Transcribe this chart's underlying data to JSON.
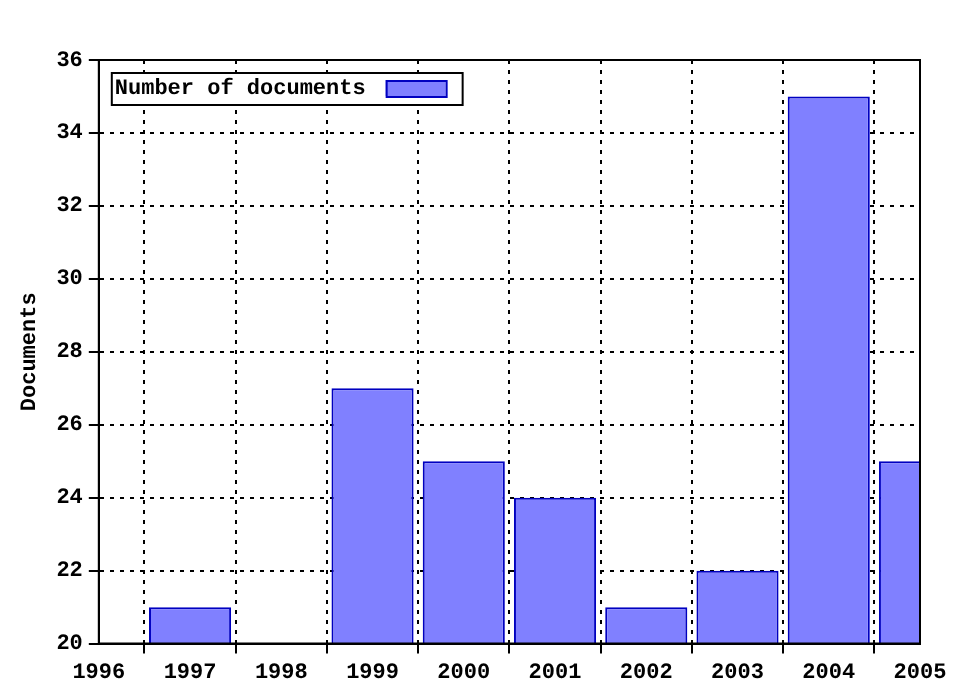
{
  "chart_data": {
    "type": "bar",
    "ylabel": "Documents",
    "x": [
      1997,
      1998,
      1999,
      2000,
      2001,
      2002,
      2003,
      2004,
      2005
    ],
    "series": [
      {
        "name": "Number of documents",
        "color": "#8080ff",
        "values": [
          21,
          null,
          27,
          25,
          24,
          21,
          22,
          35,
          25
        ]
      }
    ],
    "xlim": [
      1996,
      2005
    ],
    "xticks": [
      1996,
      1997,
      1998,
      1999,
      2000,
      2001,
      2002,
      2003,
      2004,
      2005
    ],
    "ylim": [
      20,
      36
    ],
    "yticks": [
      20,
      22,
      24,
      26,
      28,
      30,
      32,
      34,
      36
    ],
    "grid": true,
    "legend": "top left"
  }
}
